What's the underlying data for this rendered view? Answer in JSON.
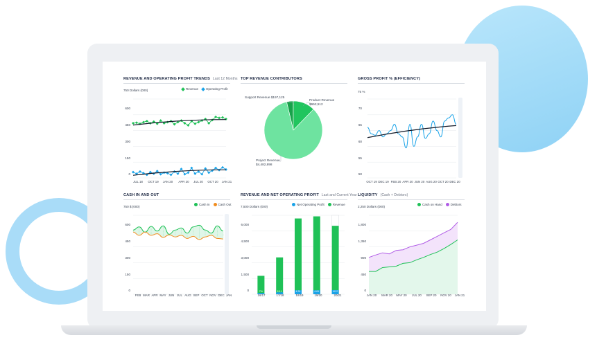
{
  "colors": {
    "green": "#1fc157",
    "blue": "#1aa3e8",
    "orange": "#f08c1e",
    "purple": "#b05ce6",
    "pie_main": "#6ee3a0",
    "pie_mid": "#21c55e",
    "pie_dark": "#17a34a"
  },
  "panels": {
    "rev_op": {
      "title": "REVENUE AND OPERATING PROFIT TRENDS",
      "subtitle": "Last 12 Months",
      "unit": "750 Dollars (000)",
      "legend": [
        "Revenue",
        "Operating Profit"
      ],
      "yticks": [
        "600",
        "450",
        "300",
        "150",
        "0"
      ],
      "xticks": [
        "JUL 18",
        "OCT 19",
        "JAN 20",
        "APR 20",
        "JUL 20",
        "OCT 20",
        "JAN 21"
      ]
    },
    "top_rev": {
      "title": "TOP REVENUE CONTRIBUTORS",
      "slices": [
        {
          "name": "Project Revenue",
          "value": "$4,482,898"
        },
        {
          "name": "Product Revenue",
          "value": "$652,512"
        },
        {
          "name": "Support Revenue",
          "value": "$197,125"
        }
      ]
    },
    "gross": {
      "title": "GROSS PROFIT % (EFFICIENCY)",
      "unit": "75 %",
      "yticks": [
        "70",
        "65",
        "60",
        "55",
        "50"
      ],
      "xticks": [
        "OCT 19",
        "DEC 19",
        "FEB 20",
        "APR 20",
        "JUN 20",
        "AUG 20",
        "OCT 20",
        "DEC 20"
      ]
    },
    "cash": {
      "title": "CASH IN AND OUT",
      "unit": "750 $ (000)",
      "legend": [
        "Cash In",
        "Cash Out"
      ],
      "yticks": [
        "600",
        "450",
        "300",
        "150",
        "0"
      ],
      "xticks": [
        "FEB",
        "MAR",
        "APR",
        "MAY",
        "JUN",
        "JUL",
        "AUG",
        "SEP",
        "OCT",
        "NOV",
        "DEC",
        "JAN"
      ]
    },
    "rev_net": {
      "title": "REVENUE AND NET OPERATING PROFIT",
      "subtitle": "Last and Current Year",
      "unit": "7,500 Dollars (000)",
      "legend": [
        "Net Operating Profit",
        "Revenue"
      ],
      "yticks": [
        "6,000",
        "4,500",
        "3,000",
        "1,500",
        "0"
      ],
      "xticks": [
        "16/17",
        "17/18",
        "18/19",
        "19/20",
        "20/21"
      ],
      "bar_labels": [
        "7%",
        "15.1",
        "4.31",
        "4.61",
        "40.2"
      ]
    },
    "liquidity": {
      "title": "LIQUIDITY",
      "subtitle": "(Cash + Debtors)",
      "unit": "2,250 Dollars (000)",
      "legend": [
        "Cash on Hand",
        "Debtors"
      ],
      "yticks": [
        "1,800",
        "1,350",
        "900",
        "450",
        "0"
      ],
      "xticks": [
        "JAN 20",
        "MAR 20",
        "MAY 20",
        "JUL 20",
        "SEP 20",
        "NOV 20",
        "JAN 21"
      ]
    }
  },
  "chart_data": [
    {
      "type": "line",
      "title": "REVENUE AND OPERATING PROFIT TRENDS",
      "ylim": [
        0,
        750
      ],
      "series": [
        {
          "name": "Revenue",
          "values": [
            520,
            525,
            515,
            530,
            540,
            520,
            535,
            515,
            545,
            520,
            530,
            540,
            510,
            530,
            545,
            520,
            500,
            540,
            515,
            530,
            545,
            560,
            520,
            550,
            580,
            570,
            575,
            560
          ]
        },
        {
          "name": "Operating Profit",
          "values": [
            55,
            40,
            60,
            45,
            30,
            55,
            40,
            65,
            35,
            50,
            45,
            30,
            60,
            40,
            85,
            35,
            50,
            95,
            40,
            60,
            35,
            90,
            50,
            70,
            95,
            75,
            100,
            80
          ]
        }
      ]
    },
    {
      "type": "pie",
      "title": "TOP REVENUE CONTRIBUTORS",
      "categories": [
        "Project Revenue",
        "Product Revenue",
        "Support Revenue"
      ],
      "values": [
        4482898,
        652512,
        197125
      ]
    },
    {
      "type": "line",
      "title": "GROSS PROFIT % (EFFICIENCY)",
      "ylim": [
        50,
        75
      ],
      "series": [
        {
          "name": "",
          "values": [
            66,
            64,
            63.5,
            65,
            63,
            64,
            65,
            67,
            64,
            63,
            59.5,
            67,
            60,
            63,
            67,
            62.5,
            64,
            68,
            65,
            63,
            68,
            69,
            70,
            67
          ]
        }
      ]
    },
    {
      "type": "area",
      "title": "CASH IN AND OUT",
      "ylim": [
        0,
        750
      ],
      "series": [
        {
          "name": "Cash In",
          "values": [
            610,
            640,
            590,
            645,
            600,
            650,
            570,
            610,
            630,
            580,
            640,
            655,
            610,
            580,
            650,
            600
          ]
        },
        {
          "name": "Cash Out",
          "values": [
            590,
            560,
            590,
            560,
            575,
            540,
            565,
            545,
            560,
            530,
            550,
            520,
            545,
            560,
            530,
            525
          ]
        }
      ]
    },
    {
      "type": "bar",
      "title": "REVENUE AND NET OPERATING PROFIT",
      "categories": [
        "16/17",
        "17/18",
        "18/19",
        "19/20",
        "20/21"
      ],
      "ylim": [
        0,
        7500
      ],
      "series": [
        {
          "name": "Revenue",
          "values": [
            1750,
            3500,
            7200,
            7400,
            6500
          ]
        },
        {
          "name": "Net Operating Profit",
          "values": [
            120,
            180,
            380,
            380,
            400
          ]
        }
      ]
    },
    {
      "type": "area",
      "title": "LIQUIDITY",
      "ylim": [
        0,
        2250
      ],
      "series": [
        {
          "name": "Cash on Hand",
          "values": [
            650,
            650,
            760,
            780,
            800,
            880,
            900,
            980,
            1050,
            1130,
            1200,
            1300,
            1420,
            1550
          ]
        },
        {
          "name": "Debtors",
          "values": [
            1050,
            1120,
            1180,
            1150,
            1250,
            1270,
            1350,
            1400,
            1450,
            1550,
            1650,
            1750,
            1850,
            2050
          ]
        }
      ]
    }
  ]
}
